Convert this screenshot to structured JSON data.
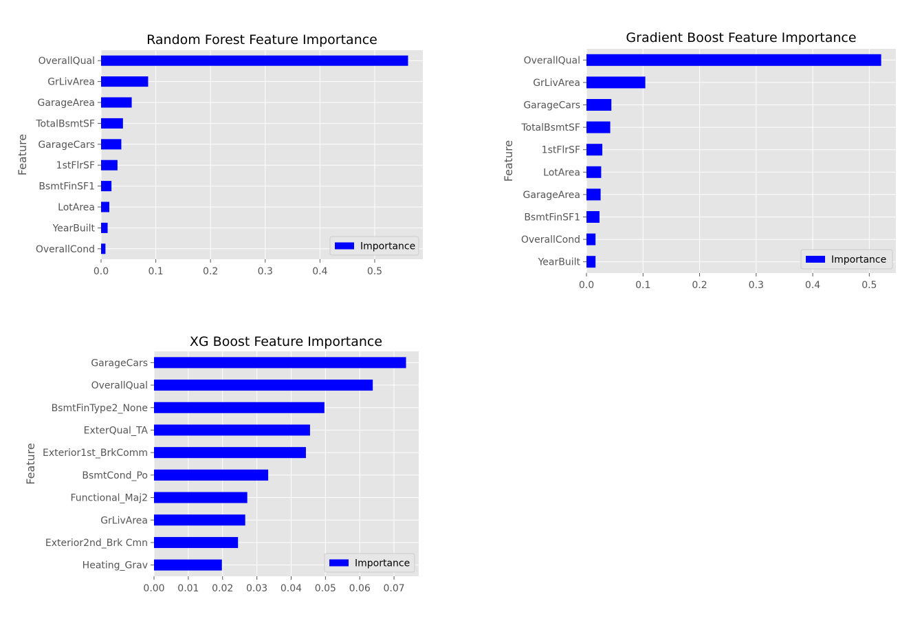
{
  "chart_data": [
    {
      "type": "bar",
      "orientation": "horizontal",
      "title": "Random Forest Feature Importance",
      "ylabel": "Feature",
      "xlabel": "",
      "categories": [
        "OverallQual",
        "GrLivArea",
        "GarageArea",
        "TotalBsmtSF",
        "GarageCars",
        "1stFlrSF",
        "BsmtFinSF1",
        "LotArea",
        "YearBuilt",
        "OverallCond"
      ],
      "series": [
        {
          "name": "Importance",
          "values": [
            0.561,
            0.086,
            0.056,
            0.04,
            0.037,
            0.03,
            0.019,
            0.015,
            0.012,
            0.008
          ]
        }
      ],
      "xlim": [
        0,
        0.588
      ],
      "xticks": [
        0.0,
        0.1,
        0.2,
        0.3,
        0.4,
        0.5
      ],
      "xtick_labels": [
        "0.0",
        "0.1",
        "0.2",
        "0.3",
        "0.4",
        "0.5"
      ],
      "legend": "lower-right",
      "grid": true,
      "colors": {
        "bar": "#0000ff",
        "background": "#e5e5e5",
        "grid": "#ffffff"
      }
    },
    {
      "type": "bar",
      "orientation": "horizontal",
      "title": "Gradient Boost Feature Importance",
      "ylabel": "Feature",
      "xlabel": "",
      "categories": [
        "OverallQual",
        "GrLivArea",
        "GarageCars",
        "TotalBsmtSF",
        "1stFlrSF",
        "LotArea",
        "GarageArea",
        "BsmtFinSF1",
        "OverallCond",
        "YearBuilt"
      ],
      "series": [
        {
          "name": "Importance",
          "values": [
            0.521,
            0.104,
            0.044,
            0.042,
            0.028,
            0.026,
            0.025,
            0.023,
            0.016,
            0.016
          ]
        }
      ],
      "xlim": [
        0,
        0.547
      ],
      "xticks": [
        0.0,
        0.1,
        0.2,
        0.3,
        0.4,
        0.5
      ],
      "xtick_labels": [
        "0.0",
        "0.1",
        "0.2",
        "0.3",
        "0.4",
        "0.5"
      ],
      "legend": "lower-right",
      "grid": true,
      "colors": {
        "bar": "#0000ff",
        "background": "#e5e5e5",
        "grid": "#ffffff"
      }
    },
    {
      "type": "bar",
      "orientation": "horizontal",
      "title": "XG Boost Feature Importance",
      "ylabel": "Feature",
      "xlabel": "",
      "categories": [
        "GarageCars",
        "OverallQual",
        "BsmtFinType2_None",
        "ExterQual_TA",
        "Exterior1st_BrkComm",
        "BsmtCond_Po",
        "Functional_Maj2",
        "GrLivArea",
        "Exterior2nd_Brk Cmn",
        "Heating_Grav"
      ],
      "series": [
        {
          "name": "Importance",
          "values": [
            0.0735,
            0.0638,
            0.0497,
            0.0455,
            0.0443,
            0.0333,
            0.0272,
            0.0266,
            0.0245,
            0.0198
          ]
        }
      ],
      "xlim": [
        0,
        0.0772
      ],
      "xticks": [
        0.0,
        0.01,
        0.02,
        0.03,
        0.04,
        0.05,
        0.06,
        0.07
      ],
      "xtick_labels": [
        "0.00",
        "0.01",
        "0.02",
        "0.03",
        "0.04",
        "0.05",
        "0.06",
        "0.07"
      ],
      "legend": "lower-right",
      "grid": true,
      "colors": {
        "bar": "#0000ff",
        "background": "#e5e5e5",
        "grid": "#ffffff"
      }
    }
  ]
}
